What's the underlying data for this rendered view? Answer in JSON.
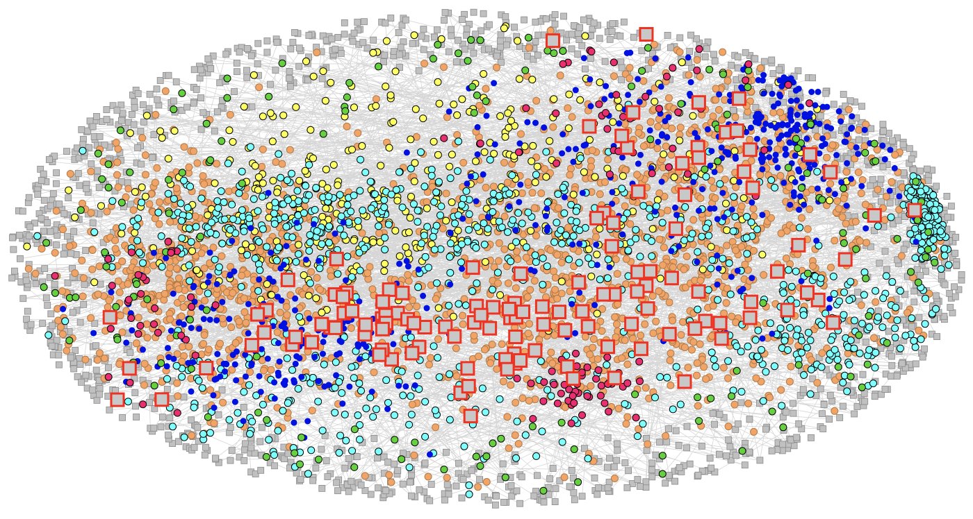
{
  "network": {
    "node_groups": [
      {
        "shape": "square",
        "fill": "#c0c0c0",
        "stroke": "#8a8a8a"
      },
      {
        "shape": "circle",
        "fill": "#f0a468",
        "stroke": "#b07a48"
      },
      {
        "shape": "circle",
        "fill": "#ffff66",
        "stroke": "#000000"
      },
      {
        "shape": "circle",
        "fill": "#80ffff",
        "stroke": "#000000"
      },
      {
        "shape": "circle",
        "fill": "#0010e0",
        "stroke": "#0010e0"
      },
      {
        "shape": "circle",
        "fill": "#66d040",
        "stroke": "#000000"
      },
      {
        "shape": "circle",
        "fill": "#e83070",
        "stroke": "#000000"
      },
      {
        "shape": "square",
        "fill": "#c8c8c8",
        "stroke": "#ee3322"
      }
    ]
  }
}
